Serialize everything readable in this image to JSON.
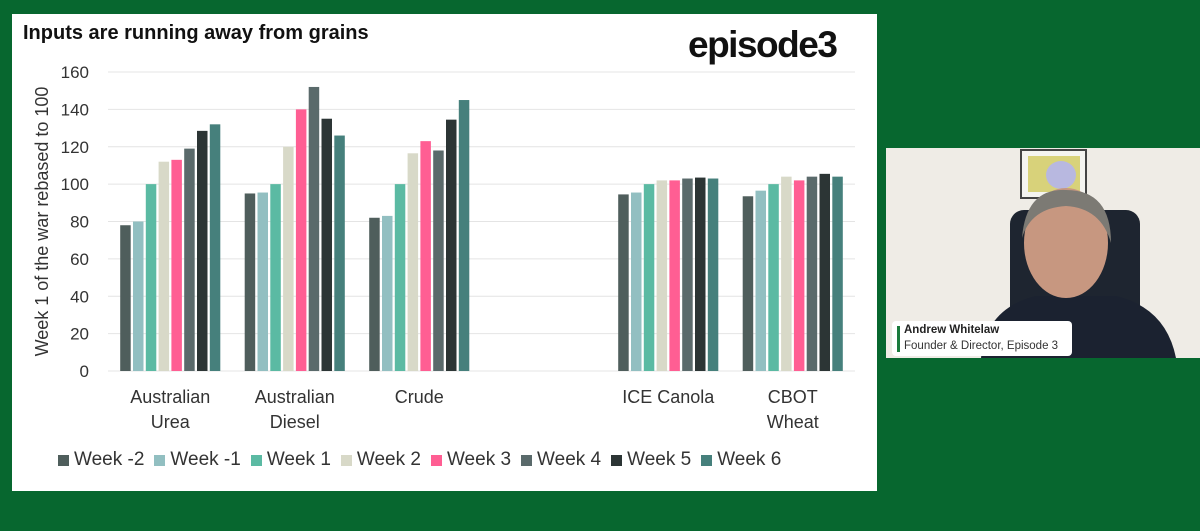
{
  "logo_text": "episode3",
  "speaker": {
    "name": "Andrew Whitelaw",
    "role": "Founder & Director, Episode 3"
  },
  "chart_data": {
    "type": "bar",
    "title": "Inputs are running away from grains",
    "ylabel": "Week 1 of the war rebased to 100",
    "xlabel": "",
    "ylim": [
      0,
      160
    ],
    "yticks": [
      0,
      20,
      40,
      60,
      80,
      100,
      120,
      140,
      160
    ],
    "grid": true,
    "legend_position": "bottom",
    "categories": [
      "Australian\nUrea",
      "Australian\nDiesel",
      "Crude",
      "",
      "ICE Canola",
      "CBOT\nWheat"
    ],
    "series": [
      {
        "name": "Week -2",
        "color": "#4f5e5c",
        "values": [
          78,
          95,
          82,
          null,
          94.5,
          93.5
        ]
      },
      {
        "name": "Week -1",
        "color": "#92bfc1",
        "values": [
          80,
          95.5,
          83,
          null,
          95.5,
          96.5
        ]
      },
      {
        "name": "Week 1",
        "color": "#5bbaa3",
        "values": [
          100,
          100,
          100,
          null,
          100,
          100
        ]
      },
      {
        "name": "Week 2",
        "color": "#d8d9c8",
        "values": [
          112,
          120,
          116.5,
          null,
          102,
          104
        ]
      },
      {
        "name": "Week 3",
        "color": "#ff5e93",
        "values": [
          113,
          140,
          123,
          null,
          102,
          102
        ]
      },
      {
        "name": "Week 4",
        "color": "#5a6a6b",
        "values": [
          119,
          152,
          118,
          null,
          103,
          104
        ]
      },
      {
        "name": "Week 5",
        "color": "#2c3535",
        "values": [
          128.5,
          135,
          134.5,
          null,
          103.5,
          105.5
        ]
      },
      {
        "name": "Week 6",
        "color": "#46807c",
        "values": [
          132,
          126,
          145,
          null,
          103,
          104
        ]
      }
    ]
  }
}
